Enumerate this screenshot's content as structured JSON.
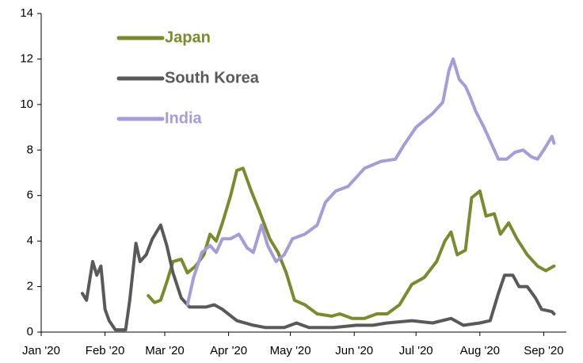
{
  "chart_data": {
    "type": "line",
    "xlim": [
      0,
      255
    ],
    "xticks": [
      {
        "value": 0,
        "label": "Jan '20"
      },
      {
        "value": 31,
        "label": "Feb '20"
      },
      {
        "value": 60,
        "label": "Mar '20"
      },
      {
        "value": 91,
        "label": "Apr '20"
      },
      {
        "value": 121,
        "label": "May '20"
      },
      {
        "value": 152,
        "label": "Jun '20"
      },
      {
        "value": 182,
        "label": "Jul '20"
      },
      {
        "value": 213,
        "label": "Aug '20"
      },
      {
        "value": 244,
        "label": "Sep '20"
      }
    ],
    "ylim": [
      0,
      14
    ],
    "yticks": [
      0,
      2,
      4,
      6,
      8,
      10,
      12,
      14
    ],
    "grid": false,
    "legend": "upper left",
    "series": [
      {
        "name": "Japan",
        "color": "#7b8a2f",
        "x": [
          52,
          55,
          58,
          61,
          64,
          68,
          71,
          75,
          79,
          82,
          85,
          88,
          92,
          95,
          98,
          102,
          106,
          111,
          115,
          119,
          123,
          128,
          134,
          141,
          145,
          151,
          157,
          163,
          168,
          174,
          180,
          186,
          192,
          196,
          199,
          202,
          206,
          209,
          213,
          216,
          220,
          223,
          227,
          231,
          236,
          241,
          245,
          249
        ],
        "values": [
          1.6,
          1.3,
          1.4,
          2.2,
          3.1,
          3.2,
          2.6,
          2.9,
          3.4,
          4.3,
          4.0,
          4.8,
          6.0,
          7.1,
          7.2,
          6.2,
          5.3,
          4.1,
          3.5,
          2.6,
          1.4,
          1.2,
          0.8,
          0.7,
          0.8,
          0.6,
          0.6,
          0.8,
          0.8,
          1.2,
          2.1,
          2.4,
          3.1,
          4.0,
          4.4,
          3.4,
          3.6,
          5.9,
          6.2,
          5.1,
          5.2,
          4.3,
          4.8,
          4.1,
          3.4,
          2.9,
          2.7,
          2.9
        ]
      },
      {
        "name": "South Korea",
        "color": "#595959",
        "x": [
          20,
          22,
          25,
          27,
          29,
          31,
          33,
          36,
          41,
          43,
          46,
          48,
          51,
          54,
          58,
          61,
          64,
          68,
          72,
          80,
          84,
          88,
          95,
          103,
          109,
          118,
          124,
          130,
          142,
          153,
          161,
          168,
          180,
          190,
          199,
          205,
          213,
          218,
          222,
          225,
          229,
          232,
          236,
          240,
          243,
          248,
          249
        ],
        "values": [
          1.7,
          1.4,
          3.1,
          2.5,
          2.9,
          1.0,
          0.5,
          0.1,
          0.1,
          1.4,
          3.9,
          3.1,
          3.4,
          4.1,
          4.7,
          3.8,
          2.6,
          1.5,
          1.1,
          1.1,
          1.2,
          1.0,
          0.5,
          0.3,
          0.2,
          0.2,
          0.4,
          0.2,
          0.2,
          0.3,
          0.3,
          0.4,
          0.5,
          0.4,
          0.6,
          0.3,
          0.4,
          0.5,
          1.7,
          2.5,
          2.5,
          2.0,
          2.0,
          1.5,
          1.0,
          0.9,
          0.8
        ]
      },
      {
        "name": "India",
        "color": "#a79bd8",
        "x": [
          71,
          74,
          78,
          82,
          85,
          88,
          92,
          96,
          100,
          103,
          107,
          110,
          114,
          118,
          122,
          128,
          134,
          138,
          143,
          149,
          157,
          165,
          172,
          176,
          182,
          190,
          195,
          198,
          200,
          203,
          206,
          208,
          211,
          215,
          219,
          222,
          226,
          230,
          234,
          238,
          241,
          244,
          248,
          249
        ],
        "values": [
          1.2,
          2.4,
          3.5,
          3.8,
          3.5,
          4.1,
          4.1,
          4.3,
          3.7,
          3.5,
          4.7,
          3.8,
          3.1,
          3.4,
          4.1,
          4.3,
          4.7,
          5.7,
          6.2,
          6.4,
          7.2,
          7.5,
          7.6,
          8.2,
          9.0,
          9.6,
          10.1,
          11.5,
          12.0,
          11.1,
          10.8,
          10.4,
          9.7,
          9.0,
          8.2,
          7.6,
          7.6,
          7.9,
          8.0,
          7.7,
          7.6,
          8.0,
          8.6,
          8.3
        ]
      }
    ]
  }
}
